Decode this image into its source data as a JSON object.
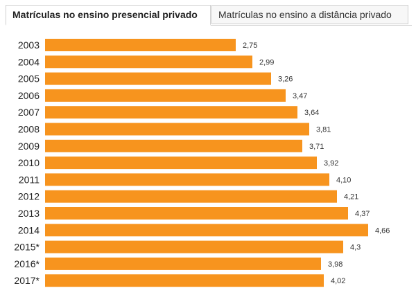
{
  "tabs": [
    {
      "label": "Matrículas no ensino presencial privado",
      "active": true
    },
    {
      "label": "Matrículas no ensino a distância privado",
      "active": false
    }
  ],
  "colors": {
    "bar": "#f7941e"
  },
  "chart_data": {
    "type": "bar",
    "orientation": "horizontal",
    "categories": [
      "2003",
      "2004",
      "2005",
      "2006",
      "2007",
      "2008",
      "2009",
      "2010",
      "2011",
      "2012",
      "2013",
      "2014",
      "2015*",
      "2016*",
      "2017*"
    ],
    "values": [
      2.75,
      2.99,
      3.26,
      3.47,
      3.64,
      3.81,
      3.71,
      3.92,
      4.1,
      4.21,
      4.37,
      4.66,
      4.3,
      3.98,
      4.02
    ],
    "value_labels": [
      "2,75",
      "2,99",
      "3,26",
      "3,47",
      "3,64",
      "3,81",
      "3,71",
      "3,92",
      "4,10",
      "4,21",
      "4,37",
      "4,66",
      "4,3",
      "3,98",
      "4,02"
    ],
    "xlim": [
      0,
      5.0
    ],
    "title": "",
    "xlabel": "",
    "ylabel": "",
    "grid": false,
    "legend": "none"
  }
}
